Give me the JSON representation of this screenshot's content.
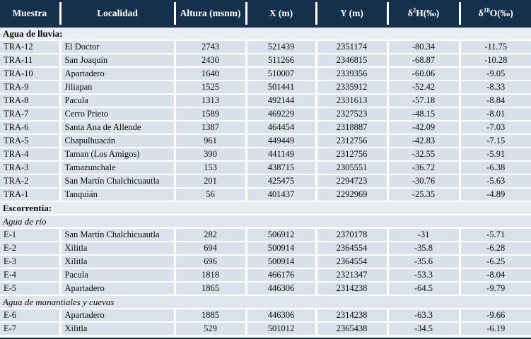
{
  "colors": {
    "header_bg": "#14304d",
    "header_text": "#ffffff",
    "row_bg": "#d9e2ea",
    "section_bg": "#e9edf2",
    "subsection_bg": "#dfe6ed",
    "separator": "#ffffff",
    "text": "#0a0a0a"
  },
  "table": {
    "columns": [
      {
        "label": "Muestra"
      },
      {
        "label": "Localidad"
      },
      {
        "label": "Altura (msnm)"
      },
      {
        "label": "X (m)"
      },
      {
        "label": "Y (m)"
      },
      {
        "label_parts": {
          "pre": "δ",
          "sup": "2",
          "post": "H(‰)"
        }
      },
      {
        "label_parts": {
          "pre": "δ",
          "sup": "18",
          "post": "O(‰)"
        }
      }
    ],
    "rows": [
      {
        "type": "section",
        "label": "Agua de lluvia:"
      },
      {
        "type": "data",
        "cells": [
          "TRA-12",
          "El Doctor",
          "2743",
          "521439",
          "2351174",
          "-80.34",
          "-11.75"
        ]
      },
      {
        "type": "data",
        "cells": [
          "TRA-11",
          "San Joaquín",
          "2430",
          "511266",
          "2346815",
          "-68.87",
          "-10.28"
        ]
      },
      {
        "type": "data",
        "cells": [
          "TRA-10",
          "Apartadero",
          "1640",
          "510007",
          "2339356",
          "-60.06",
          "-9.05"
        ]
      },
      {
        "type": "data",
        "cells": [
          "TRA-9",
          "Jiliapan",
          "1525",
          "501441",
          "2335912",
          "-52.42",
          "-8.33"
        ]
      },
      {
        "type": "data",
        "cells": [
          "TRA-8",
          "Pacula",
          "1313",
          "492144",
          "2331613",
          "-57.18",
          "-8.84"
        ]
      },
      {
        "type": "data",
        "cells": [
          "TRA-7",
          "Cerro Prieto",
          "1589",
          "469229",
          "2327523",
          "-48.15",
          "-8.01"
        ]
      },
      {
        "type": "data",
        "cells": [
          "TRA-6",
          "Santa Ana de Allende",
          "1387",
          "464454",
          "2318887",
          "-42.09",
          "-7.03"
        ]
      },
      {
        "type": "data",
        "cells": [
          "TRA-5",
          "Chapulhuacán",
          "961",
          "449449",
          "2312756",
          "-42.83",
          "-7.15"
        ]
      },
      {
        "type": "data",
        "cells": [
          "TRA-4",
          "Taman (Los Amigos)",
          "390",
          "441149",
          "2312756",
          "-32.55",
          "-5.91"
        ]
      },
      {
        "type": "data",
        "cells": [
          "TRA-3",
          "Tamazunchale",
          "153",
          "438715",
          "2305551",
          "-36.72",
          "-6.38"
        ]
      },
      {
        "type": "data",
        "cells": [
          "TRA-2",
          "San Martín Chalchicuautla",
          "201",
          "425475",
          "2294723",
          "-30.76",
          "-5.63"
        ]
      },
      {
        "type": "data",
        "cells": [
          "TRA-1",
          "Tanquián",
          "56",
          "401437",
          "2292969",
          "-25.35",
          "-4.89"
        ]
      },
      {
        "type": "section",
        "label": "Escorrentía:"
      },
      {
        "type": "subsection",
        "label": "Agua de río"
      },
      {
        "type": "data",
        "cells": [
          "E-1",
          "San Martín Chalchicuautla",
          "282",
          "506912",
          "2370178",
          "-31",
          "-5.71"
        ]
      },
      {
        "type": "data",
        "cells": [
          "E-2",
          "Xilitla",
          "694",
          "500914",
          "2364554",
          "-35.8",
          "-6.28"
        ]
      },
      {
        "type": "data",
        "cells": [
          "E-3",
          "Xilitla",
          "696",
          "500914",
          "2364554",
          "-35.6",
          "-6.25"
        ]
      },
      {
        "type": "data",
        "cells": [
          "E-4",
          "Pacula",
          "1818",
          "466176",
          "2321347",
          "-53.3",
          "-8.04"
        ]
      },
      {
        "type": "data",
        "cells": [
          "E-5",
          "Apartadero",
          "1865",
          "446306",
          "2314238",
          "-64.5",
          "-9.79"
        ]
      },
      {
        "type": "subsection",
        "label": "Agua de manantiales y cuevas"
      },
      {
        "type": "data",
        "cells": [
          "E-6",
          "Apartadero",
          "1885",
          "446306",
          "2314238",
          "-63.3",
          "-9.66"
        ]
      },
      {
        "type": "data",
        "cells": [
          "E-7",
          "Xilitla",
          "529",
          "501012",
          "2365438",
          "-34.5",
          "-6.19"
        ]
      }
    ]
  }
}
